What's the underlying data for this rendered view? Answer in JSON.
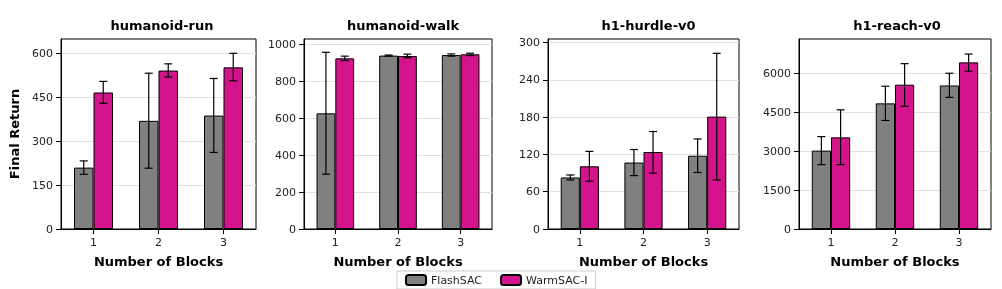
{
  "chart_data": [
    {
      "type": "bar",
      "title": "humanoid-run",
      "xlabel": "Number of Blocks",
      "ylabel": "Final Return",
      "categories": [
        "1",
        "2",
        "3"
      ],
      "ylim": [
        0,
        650
      ],
      "yticks": [
        0,
        150,
        300,
        450,
        600
      ],
      "grid": "y",
      "series": [
        {
          "color": "#808080",
          "values": [
            210,
            370,
            388
          ],
          "errors": [
            [
              187,
              233
            ],
            [
              208,
              533
            ],
            [
              262,
              515
            ]
          ]
        },
        {
          "color": "#d4148c",
          "values": [
            467,
            542,
            553
          ],
          "errors": [
            [
              430,
              505
            ],
            [
              520,
              565
            ],
            [
              507,
              601
            ]
          ]
        }
      ]
    },
    {
      "type": "bar",
      "title": "humanoid-walk",
      "xlabel": "Number of Blocks",
      "categories": [
        "1",
        "2",
        "3"
      ],
      "ylim": [
        0,
        1030
      ],
      "yticks": [
        0,
        200,
        400,
        600,
        800,
        1000
      ],
      "grid": "y",
      "legend": "bottom",
      "series": [
        {
          "name": "FlashSAC",
          "color": "#808080",
          "values": [
            627,
            940,
            943
          ],
          "errors": [
            [
              297,
              958
            ],
            [
              937,
              943
            ],
            [
              937,
              949
            ]
          ]
        },
        {
          "name": "WarmSAC-I",
          "color": "#d4148c",
          "values": [
            925,
            938,
            947
          ],
          "errors": [
            [
              913,
              937
            ],
            [
              928,
              948
            ],
            [
              940,
              953
            ]
          ]
        }
      ]
    },
    {
      "type": "bar",
      "title": "h1-hurdle-v0",
      "xlabel": "Number of Blocks",
      "categories": [
        "1",
        "2",
        "3"
      ],
      "ylim": [
        0,
        306
      ],
      "yticks": [
        0,
        60,
        120,
        180,
        240,
        300
      ],
      "grid": "y",
      "series": [
        {
          "color": "#808080",
          "values": [
            83,
            107,
            118
          ],
          "errors": [
            [
              79,
              87
            ],
            [
              86,
              128
            ],
            [
              91,
              145
            ]
          ]
        },
        {
          "color": "#d4148c",
          "values": [
            101,
            124,
            181
          ],
          "errors": [
            [
              77,
              125
            ],
            [
              90,
              157
            ],
            [
              79,
              283
            ]
          ]
        }
      ]
    },
    {
      "type": "bar",
      "title": "h1-reach-v0",
      "xlabel": "Number of Blocks",
      "categories": [
        "1",
        "2",
        "3"
      ],
      "ylim": [
        0,
        7320
      ],
      "yticks": [
        0,
        1500,
        3000,
        4500,
        6000
      ],
      "grid": "y",
      "series": [
        {
          "color": "#808080",
          "values": [
            3020,
            4840,
            5530
          ],
          "errors": [
            [
              2480,
              3560
            ],
            [
              4180,
              5500
            ],
            [
              5070,
              6000
            ]
          ]
        },
        {
          "color": "#d4148c",
          "values": [
            3530,
            5560,
            6420
          ],
          "errors": [
            [
              2480,
              4590
            ],
            [
              4730,
              6370
            ],
            [
              6080,
              6740
            ]
          ]
        }
      ]
    }
  ]
}
